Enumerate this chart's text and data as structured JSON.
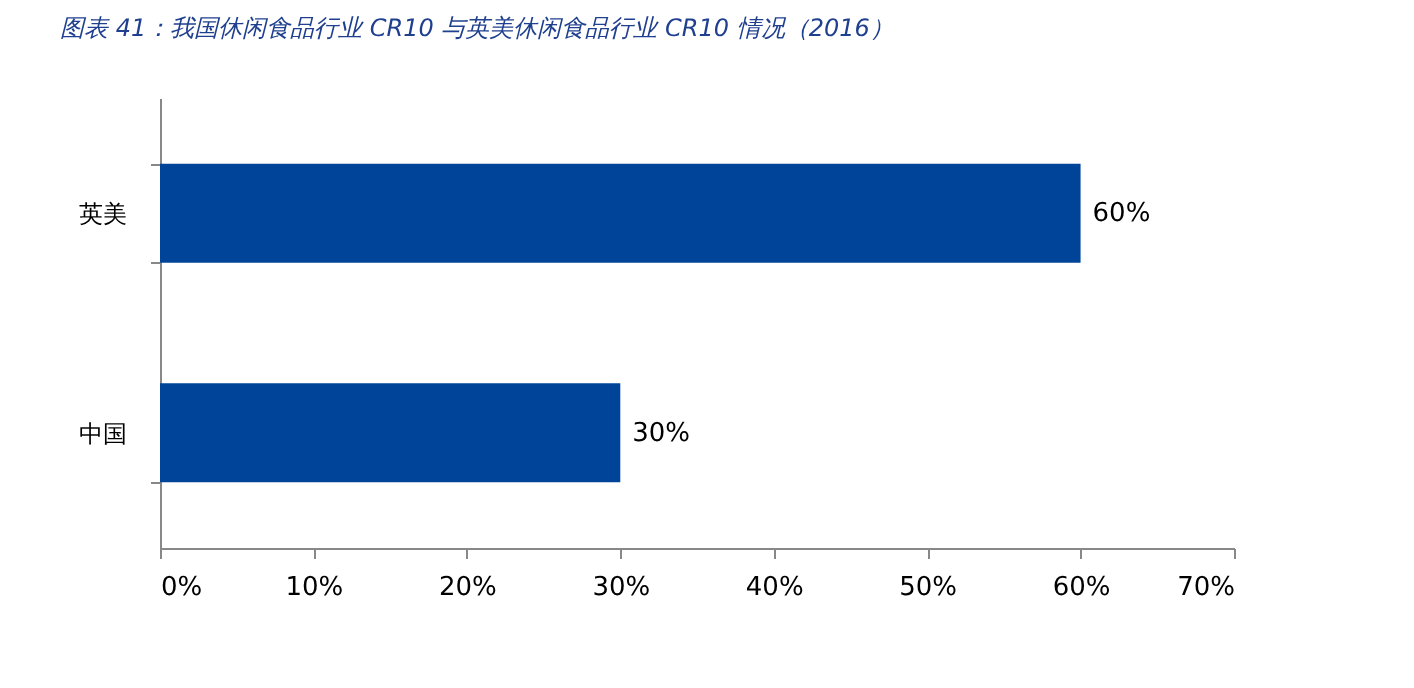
{
  "chart_data": {
    "type": "bar",
    "orientation": "horizontal",
    "title": "图表 41：我国休闲食品行业 CR10 与英美休闲食品行业 CR10 情况（2016）",
    "categories": [
      "英美",
      "中国"
    ],
    "values": [
      60,
      30
    ],
    "color": "#00449a",
    "value_labels": [
      "60%",
      "30%"
    ],
    "xlim": [
      0,
      70
    ],
    "xticks": [
      {
        "value": 0,
        "label": "0%"
      },
      {
        "value": 10,
        "label": "10%"
      },
      {
        "value": 20,
        "label": "20%"
      },
      {
        "value": 30,
        "label": "30%"
      },
      {
        "value": 40,
        "label": "40%"
      },
      {
        "value": 50,
        "label": "50%"
      },
      {
        "value": 60,
        "label": "60%"
      },
      {
        "value": 70,
        "label": "70%"
      }
    ],
    "grid": false
  }
}
